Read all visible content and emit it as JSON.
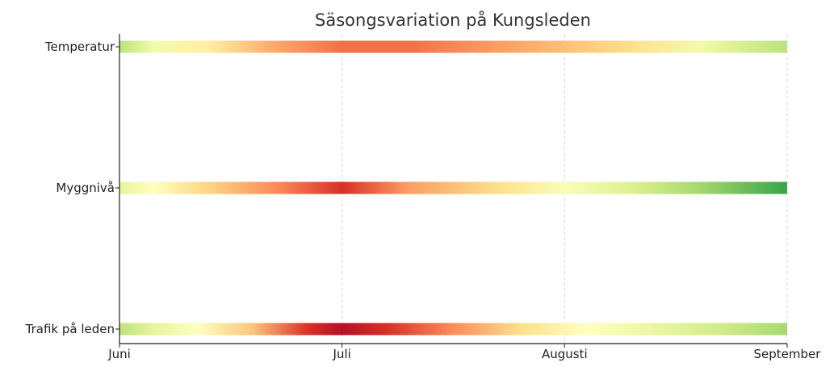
{
  "chart_data": {
    "type": "heatmap",
    "title": "Säsongsvariation på Kungsleden",
    "x_ticks": [
      "Juni",
      "Juli",
      "Augusti",
      "September"
    ],
    "xlim": [
      0,
      3
    ],
    "grid": "vertical dashed",
    "colormap": "RdYlGn (reversed: high = red)",
    "series": [
      {
        "name": "Temperatur",
        "x": [
          0,
          0.15,
          0.4,
          0.7,
          1.0,
          1.3,
          1.7,
          2.0,
          2.3,
          2.6,
          2.85,
          3.0
        ],
        "values": [
          0.3,
          0.45,
          0.55,
          0.7,
          0.78,
          0.78,
          0.72,
          0.66,
          0.6,
          0.45,
          0.35,
          0.3
        ]
      },
      {
        "name": "Myggnivå",
        "x": [
          0,
          0.15,
          0.4,
          0.7,
          1.0,
          1.3,
          1.7,
          2.0,
          2.3,
          2.6,
          3.0
        ],
        "values": [
          0.4,
          0.5,
          0.62,
          0.75,
          0.85,
          0.72,
          0.6,
          0.48,
          0.38,
          0.25,
          0.05
        ]
      },
      {
        "name": "Trafik på leden",
        "x": [
          0,
          0.15,
          0.35,
          0.6,
          0.85,
          1.0,
          1.2,
          1.5,
          1.8,
          2.1,
          2.4,
          2.7,
          3.0
        ],
        "values": [
          0.3,
          0.4,
          0.5,
          0.65,
          0.85,
          0.95,
          0.85,
          0.75,
          0.6,
          0.5,
          0.42,
          0.35,
          0.25
        ]
      }
    ]
  }
}
